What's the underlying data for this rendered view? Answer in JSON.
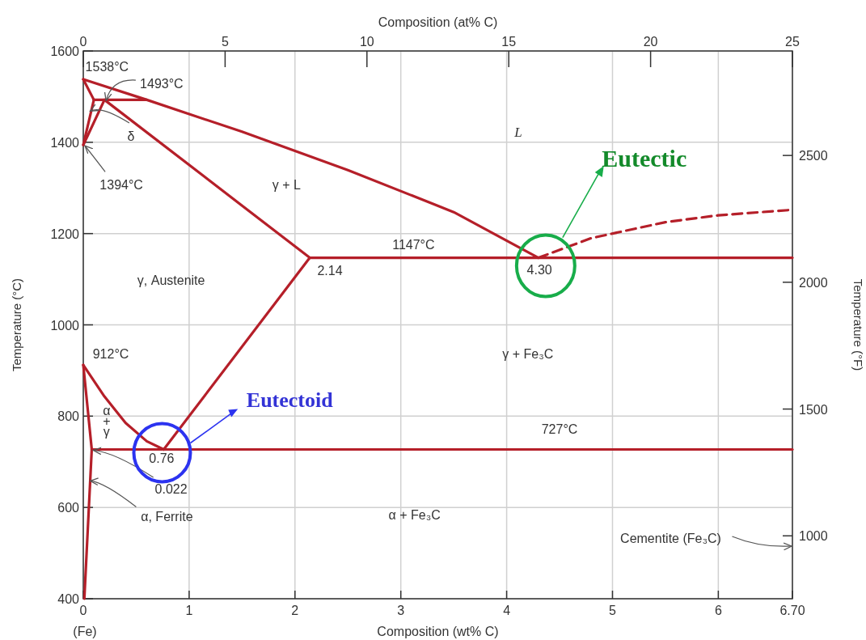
{
  "chart_data": {
    "type": "line",
    "xlabel": "Composition (wt% C)",
    "x2label": "Composition (at% C)",
    "ylabel": "Temperature (°C)",
    "y2label": "Temperature (°F)",
    "xlim": [
      0,
      6.7
    ],
    "xticks": [
      0,
      1,
      2,
      3,
      4,
      5,
      6,
      {
        "value": 6.7,
        "label": "6.70"
      }
    ],
    "x2lim": [
      0,
      25
    ],
    "x2ticks": [
      0,
      5,
      10,
      15,
      20,
      25
    ],
    "ylim": [
      400,
      1600
    ],
    "yticks": [
      400,
      600,
      800,
      1000,
      1200,
      1400,
      1600
    ],
    "y2lim": [
      752,
      2912
    ],
    "y2ticks": [
      1000,
      1500,
      2000,
      2500
    ],
    "grid": true,
    "marker": "none",
    "line_style": "solid",
    "series": [
      {
        "color": "#b51f29",
        "x": [
          0,
          0.6,
          1.5,
          2.5,
          3.5,
          4.3
        ],
        "values": [
          1538,
          1493,
          1423,
          1339,
          1247,
          1147
        ]
      },
      {
        "color": "#b51f29",
        "x": [
          0,
          0.1
        ],
        "values": [
          1538,
          1493
        ]
      },
      {
        "color": "#b51f29",
        "x": [
          0,
          0.1
        ],
        "values": [
          1394,
          1493
        ]
      },
      {
        "color": "#b51f29",
        "x": [
          0,
          0.2
        ],
        "values": [
          1394,
          1493
        ]
      },
      {
        "color": "#b51f29",
        "x": [
          0.1,
          0.6
        ],
        "values": [
          1493,
          1493
        ]
      },
      {
        "color": "#b51f29",
        "x": [
          0.2,
          2.14
        ],
        "values": [
          1493,
          1147
        ]
      },
      {
        "color": "#b51f29",
        "x": [
          2.14,
          6.7
        ],
        "values": [
          1147,
          1147
        ]
      },
      {
        "color": "#b51f29",
        "line_style": "dashed",
        "x": [
          4.3,
          4.8,
          5.5,
          6.0,
          6.7
        ],
        "values": [
          1147,
          1190,
          1225,
          1240,
          1252
        ]
      },
      {
        "color": "#b51f29",
        "x": [
          0.76,
          2.14
        ],
        "values": [
          727,
          1147
        ]
      },
      {
        "color": "#b51f29",
        "x": [
          0,
          0.2,
          0.4,
          0.6,
          0.76
        ],
        "values": [
          912,
          843,
          785,
          745,
          727
        ]
      },
      {
        "color": "#b51f29",
        "x": [
          0,
          0.08,
          0.01
        ],
        "values": [
          912,
          727,
          400
        ]
      },
      {
        "color": "#b51f29",
        "x": [
          0.08,
          6.7
        ],
        "values": [
          727,
          727
        ]
      }
    ],
    "annotations": [
      "1538°C",
      {
        "text": "1493°C",
        "x": 0.2,
        "y": 1493
      },
      {
        "text": "δ",
        "x": 0.05,
        "y": 1470
      },
      {
        "text": "1394°C",
        "x": 0,
        "y": 1394
      },
      "L",
      "γ + L",
      "γ, Austenite",
      "1147°C",
      "2.14",
      "4.30",
      "912°C",
      "γ + Fe₃C",
      "Eutectic",
      "Eutectoid",
      "α\n+\nγ",
      "727°C",
      "0.76",
      {
        "text": "0.022",
        "x": 0.08,
        "y": 727
      },
      {
        "text": "α, Ferrite",
        "x": 0.05,
        "y": 660
      },
      "α + Fe₃C",
      "Cementite (Fe₃C)",
      "(Fe)"
    ]
  }
}
